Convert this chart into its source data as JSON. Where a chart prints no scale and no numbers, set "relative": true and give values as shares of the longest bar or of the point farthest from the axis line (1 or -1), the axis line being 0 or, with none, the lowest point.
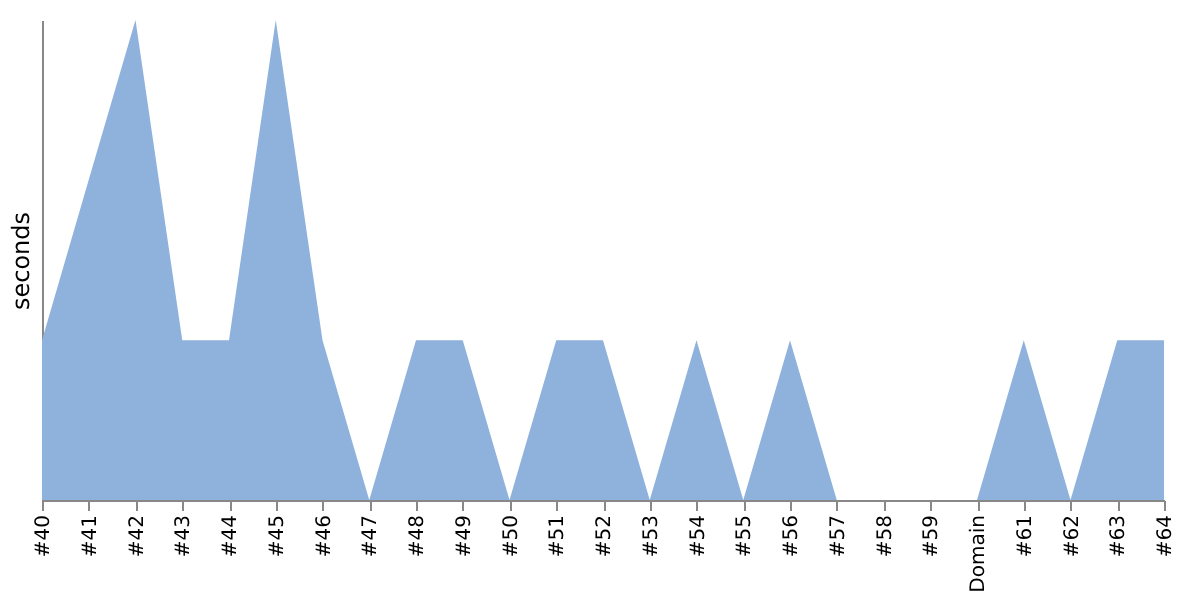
{
  "chart_data": {
    "type": "area",
    "ylabel": "seconds",
    "relative": true,
    "color": "#8fb2dc",
    "grid": false,
    "categories": [
      "#40",
      "#41",
      "#42",
      "#43",
      "#44",
      "#45",
      "#46",
      "#47",
      "#48",
      "#49",
      "#50",
      "#51",
      "#52",
      "#53",
      "#54",
      "#55",
      "#56",
      "#57",
      "#58",
      "#59",
      "Domain",
      "#61",
      "#62",
      "#63",
      "#64"
    ],
    "values": [
      0.333,
      0.667,
      1,
      0.333,
      0.333,
      1,
      0.333,
      0,
      0.333,
      0.333,
      0,
      0.333,
      0.333,
      0,
      0.333,
      0,
      0.333,
      0,
      0,
      0,
      0,
      0.333,
      0,
      0.333,
      0.333
    ]
  }
}
